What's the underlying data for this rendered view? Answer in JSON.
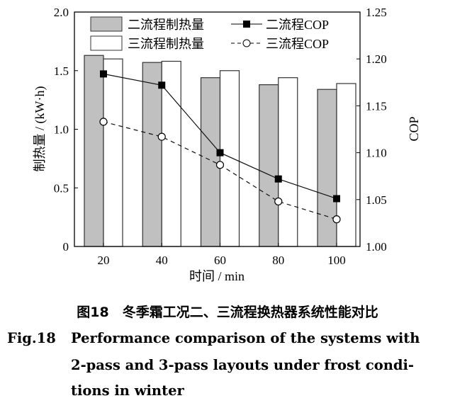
{
  "chart_data": {
    "type": "bar+line",
    "categories": [
      20,
      40,
      60,
      80,
      100
    ],
    "xlabel": "时间 / min",
    "ylabel": "制热量 / (kW·h)",
    "y2label": "COP",
    "ylim": [
      0,
      2.0
    ],
    "y2lim": [
      1.0,
      1.25
    ],
    "yticks": [
      "0",
      "0.5",
      "1.0",
      "1.5",
      "2.0"
    ],
    "y2ticks": [
      "1.00",
      "1.05",
      "1.10",
      "1.15",
      "1.20",
      "1.25"
    ],
    "grid": false,
    "legend_placement": "top",
    "series": [
      {
        "name": "二流程制热量",
        "type": "bar",
        "axis": "left",
        "color": "#c0c0c0",
        "values": [
          1.63,
          1.57,
          1.44,
          1.38,
          1.34
        ]
      },
      {
        "name": "三流程制热量",
        "type": "bar",
        "axis": "left",
        "color": "#ffffff",
        "values": [
          1.6,
          1.58,
          1.5,
          1.44,
          1.39
        ]
      },
      {
        "name": "二流程COP",
        "type": "line",
        "axis": "right",
        "marker": "filled-square",
        "line": "solid",
        "values": [
          1.184,
          1.172,
          1.1,
          1.072,
          1.051
        ]
      },
      {
        "name": "三流程COP",
        "type": "line",
        "axis": "right",
        "marker": "open-circle",
        "line": "dashed",
        "values": [
          1.133,
          1.117,
          1.087,
          1.048,
          1.029
        ]
      }
    ]
  },
  "caption": {
    "cn": "图18　冬季霜工况二、三流程换热器系统性能对比",
    "en_label": "Fig.18",
    "en_line1": "Performance comparison of the systems with",
    "en_line2": "2-pass and 3-pass layouts under frost condi-",
    "en_line3": "tions in winter"
  }
}
